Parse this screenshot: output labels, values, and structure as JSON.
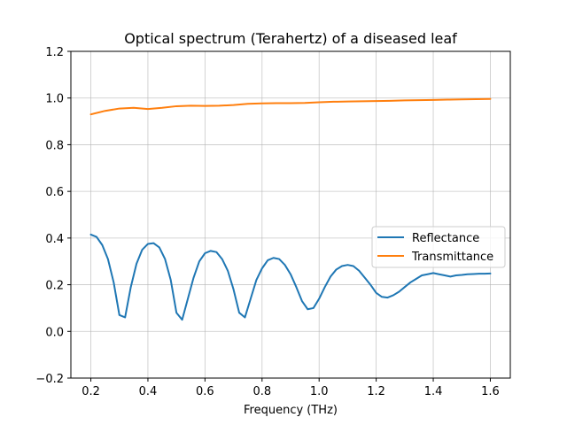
{
  "chart_data": {
    "type": "line",
    "title": "Optical spectrum (Terahertz) of a diseased leaf",
    "xlabel": "Frequency (THz)",
    "ylabel": "",
    "xlim": [
      0.13,
      1.67
    ],
    "ylim": [
      -0.2,
      1.2
    ],
    "xticks": [
      0.2,
      0.4,
      0.6,
      0.8,
      1.0,
      1.2,
      1.4,
      1.6
    ],
    "xtick_labels": [
      "0.2",
      "0.4",
      "0.6",
      "0.8",
      "1.0",
      "1.2",
      "1.4",
      "1.6"
    ],
    "yticks": [
      -0.2,
      0.0,
      0.2,
      0.4,
      0.6,
      0.8,
      1.0,
      1.2
    ],
    "ytick_labels": [
      "−0.2",
      "0.0",
      "0.2",
      "0.4",
      "0.6",
      "0.8",
      "1.0",
      "1.2"
    ],
    "grid": true,
    "legend_position": "center-right",
    "series": [
      {
        "name": "Reflectance",
        "color": "#1f77b4",
        "x": [
          0.2,
          0.22,
          0.24,
          0.26,
          0.28,
          0.3,
          0.32,
          0.34,
          0.36,
          0.38,
          0.4,
          0.42,
          0.44,
          0.46,
          0.48,
          0.5,
          0.52,
          0.54,
          0.56,
          0.58,
          0.6,
          0.62,
          0.64,
          0.66,
          0.68,
          0.7,
          0.72,
          0.74,
          0.76,
          0.78,
          0.8,
          0.82,
          0.84,
          0.86,
          0.88,
          0.9,
          0.92,
          0.94,
          0.96,
          0.98,
          1.0,
          1.02,
          1.04,
          1.06,
          1.08,
          1.1,
          1.12,
          1.14,
          1.16,
          1.18,
          1.2,
          1.22,
          1.24,
          1.26,
          1.28,
          1.3,
          1.32,
          1.34,
          1.36,
          1.38,
          1.4,
          1.42,
          1.44,
          1.46,
          1.48,
          1.5,
          1.52,
          1.54,
          1.56,
          1.58,
          1.6
        ],
        "values": [
          0.415,
          0.405,
          0.37,
          0.31,
          0.21,
          0.07,
          0.06,
          0.19,
          0.29,
          0.35,
          0.375,
          0.378,
          0.36,
          0.31,
          0.22,
          0.08,
          0.05,
          0.14,
          0.23,
          0.3,
          0.335,
          0.345,
          0.34,
          0.31,
          0.26,
          0.18,
          0.08,
          0.06,
          0.14,
          0.22,
          0.27,
          0.305,
          0.315,
          0.31,
          0.285,
          0.245,
          0.19,
          0.13,
          0.095,
          0.1,
          0.14,
          0.19,
          0.235,
          0.265,
          0.28,
          0.285,
          0.28,
          0.26,
          0.23,
          0.2,
          0.165,
          0.148,
          0.145,
          0.155,
          0.17,
          0.19,
          0.21,
          0.225,
          0.24,
          0.245,
          0.25,
          0.245,
          0.24,
          0.235,
          0.24,
          0.242,
          0.245,
          0.246,
          0.247,
          0.247,
          0.248
        ]
      },
      {
        "name": "Transmittance",
        "color": "#ff7f0e",
        "x": [
          0.2,
          0.25,
          0.3,
          0.35,
          0.4,
          0.45,
          0.5,
          0.55,
          0.6,
          0.65,
          0.7,
          0.75,
          0.8,
          0.85,
          0.9,
          0.95,
          1.0,
          1.05,
          1.1,
          1.15,
          1.2,
          1.25,
          1.3,
          1.35,
          1.4,
          1.45,
          1.5,
          1.55,
          1.6
        ],
        "values": [
          0.93,
          0.945,
          0.955,
          0.958,
          0.953,
          0.958,
          0.965,
          0.967,
          0.966,
          0.967,
          0.97,
          0.975,
          0.977,
          0.978,
          0.978,
          0.979,
          0.982,
          0.984,
          0.985,
          0.986,
          0.987,
          0.988,
          0.99,
          0.991,
          0.992,
          0.993,
          0.994,
          0.995,
          0.996
        ]
      }
    ]
  }
}
